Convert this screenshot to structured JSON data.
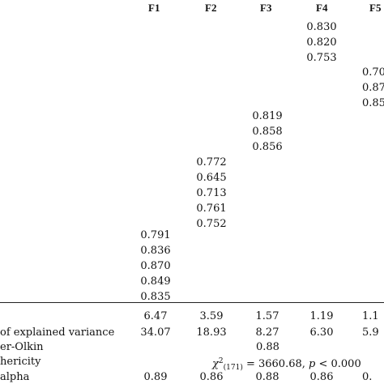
{
  "headers": [
    "F1",
    "F2",
    "F3",
    "F4",
    "F5"
  ],
  "loadings": {
    "F4": [
      "0.830",
      "0.820",
      "0.753"
    ],
    "F5": [
      "0.70",
      "0.87",
      "0.85"
    ],
    "F3": [
      "0.819",
      "0.858",
      "0.856"
    ],
    "F2": [
      "0.772",
      "0.645",
      "0.713",
      "0.761",
      "0.752"
    ],
    "F1": [
      "0.791",
      "0.836",
      "0.870",
      "0.849",
      "0.835"
    ]
  },
  "summary": {
    "eigen": {
      "label": "",
      "values": [
        "6.47",
        "3.59",
        "1.57",
        "1.19",
        "1.1"
      ]
    },
    "variance": {
      "label": "of explained variance",
      "values": [
        "34.07",
        "18.93",
        "8.27",
        "6.30",
        "5.9"
      ]
    },
    "kmo": {
      "label": "er-Olkin",
      "value": "0.88"
    },
    "bartlett": {
      "label": "hericity",
      "chi": "χ",
      "sup": "2",
      "sub": "(171)",
      "rest": " = 3660.68, ",
      "p": "p",
      "prest": " < 0.000"
    },
    "alpha": {
      "label": "alpha",
      "values": [
        "0.89",
        "0.86",
        "0.88",
        "0.86",
        "0."
      ]
    }
  }
}
